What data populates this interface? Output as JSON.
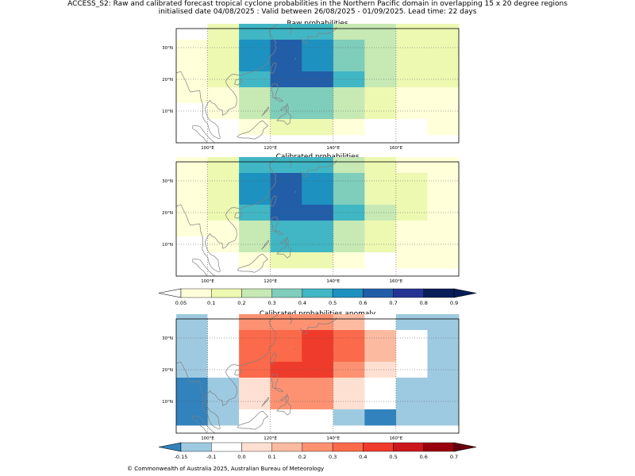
{
  "header": {
    "title_line1": "ACCESS_S2: Raw and calibrated forecast tropical cyclone probabilities in the Northern Pacific domain in overlapping 15 x 20 degree regions",
    "title_line2": "initialised date 04/08/2025 :  Valid between 26/08/2025 - 01/09/2025. Lead time: 22 days"
  },
  "footer": {
    "copyright": "© Commonwealth of Australia 2025, Australian Bureau of Meteorology"
  },
  "colors": {
    "prob_palette": [
      "#ffffff",
      "#ffffd9",
      "#edf8b1",
      "#c7e9b4",
      "#7fcdbb",
      "#41b6c4",
      "#1d91c0",
      "#225ea8",
      "#253494",
      "#081d58"
    ],
    "anom_palette": [
      "#3182bd",
      "#9ecae1",
      "#ffffff",
      "#fee0d2",
      "#fcbba1",
      "#fc9272",
      "#fb6a4a",
      "#ef3b2c",
      "#cb181d",
      "#99000d"
    ],
    "coast": "#808080"
  },
  "chart_data": [
    {
      "type": "heatmap",
      "title": "Raw probabilities",
      "x": [
        95,
        105,
        115,
        125,
        135,
        145,
        155,
        165,
        175
      ],
      "y": [
        35,
        30,
        25,
        20,
        15,
        10,
        5
      ],
      "values": [
        [
          0.03,
          0.15,
          0.45,
          0.45,
          0.45,
          0.25,
          0.25,
          0.15,
          0.15
        ],
        [
          0.07,
          0.15,
          0.55,
          0.65,
          0.55,
          0.35,
          0.25,
          0.15,
          0.15
        ],
        [
          0.07,
          0.15,
          0.55,
          0.65,
          0.55,
          0.35,
          0.25,
          0.15,
          0.15
        ],
        [
          0.07,
          0.15,
          0.45,
          0.65,
          0.65,
          0.45,
          0.25,
          0.15,
          0.15
        ],
        [
          0.07,
          0.07,
          0.25,
          0.35,
          0.35,
          0.25,
          0.15,
          0.07,
          0.07
        ],
        [
          0.03,
          0.07,
          0.25,
          0.35,
          0.35,
          0.25,
          0.15,
          0.07,
          0.07
        ],
        [
          0.03,
          0.03,
          0.07,
          0.15,
          0.15,
          0.07,
          0.03,
          0.03,
          0.07
        ]
      ],
      "xticks": [
        "100°E",
        "120°E",
        "140°E",
        "160°E"
      ],
      "yticks": [
        "10°N",
        "20°N",
        "30°N"
      ]
    },
    {
      "type": "heatmap",
      "title": "Calibrated probabilities",
      "x": [
        95,
        105,
        115,
        125,
        135,
        145,
        155,
        165,
        175
      ],
      "y": [
        35,
        30,
        25,
        20,
        15,
        10,
        5
      ],
      "values": [
        [
          0.07,
          0.15,
          0.45,
          0.45,
          0.45,
          0.25,
          0.15,
          0.07,
          0.07
        ],
        [
          0.07,
          0.15,
          0.55,
          0.65,
          0.55,
          0.35,
          0.15,
          0.15,
          0.07
        ],
        [
          0.07,
          0.15,
          0.55,
          0.65,
          0.55,
          0.35,
          0.15,
          0.15,
          0.07
        ],
        [
          0.07,
          0.15,
          0.45,
          0.65,
          0.65,
          0.45,
          0.25,
          0.15,
          0.07
        ],
        [
          0.07,
          0.07,
          0.25,
          0.45,
          0.45,
          0.25,
          0.15,
          0.07,
          0.07
        ],
        [
          0.03,
          0.07,
          0.25,
          0.45,
          0.45,
          0.25,
          0.15,
          0.07,
          0.07
        ],
        [
          0.03,
          0.03,
          0.07,
          0.15,
          0.15,
          0.07,
          0.03,
          0.07,
          0.07
        ]
      ],
      "xticks": [
        "100°E",
        "120°E",
        "140°E",
        "160°E"
      ],
      "yticks": [
        "10°N",
        "20°N",
        "30°N"
      ]
    },
    {
      "type": "heatmap",
      "title": "Calibrated probabilities anomaly",
      "x": [
        95,
        105,
        115,
        125,
        135,
        145,
        155,
        165,
        175
      ],
      "y": [
        35,
        30,
        25,
        20,
        15,
        10,
        5
      ],
      "values": [
        [
          -0.12,
          -0.03,
          0.25,
          0.25,
          0.25,
          0.15,
          -0.03,
          -0.12,
          -0.12
        ],
        [
          -0.12,
          -0.03,
          0.35,
          0.35,
          0.45,
          0.35,
          0.15,
          -0.03,
          -0.12
        ],
        [
          -0.12,
          -0.03,
          0.35,
          0.35,
          0.45,
          0.35,
          0.15,
          -0.03,
          -0.12
        ],
        [
          -0.12,
          -0.03,
          0.35,
          0.45,
          0.45,
          0.25,
          0.05,
          -0.03,
          -0.12
        ],
        [
          -0.2,
          -0.12,
          0.05,
          0.25,
          0.25,
          0.05,
          -0.03,
          -0.12,
          -0.12
        ],
        [
          -0.2,
          -0.12,
          0.05,
          0.25,
          0.25,
          0.05,
          -0.03,
          -0.12,
          -0.12
        ],
        [
          -0.2,
          -0.12,
          -0.03,
          -0.03,
          -0.03,
          -0.12,
          -0.2,
          -0.12,
          -0.12
        ]
      ],
      "xticks": [
        "100°E",
        "120°E",
        "140°E",
        "160°E"
      ],
      "yticks": [
        "10°N",
        "20°N",
        "30°N"
      ]
    }
  ],
  "colorbars": {
    "prob": {
      "ticks": [
        "0.05",
        "0.1",
        "0.2",
        "0.3",
        "0.4",
        "0.5",
        "0.6",
        "0.7",
        "0.8",
        "0.9"
      ]
    },
    "anom": {
      "ticks": [
        "-0.15",
        "-0.1",
        "0.0",
        "0.1",
        "0.2",
        "0.3",
        "0.4",
        "0.5",
        "0.6",
        "0.7"
      ]
    }
  }
}
